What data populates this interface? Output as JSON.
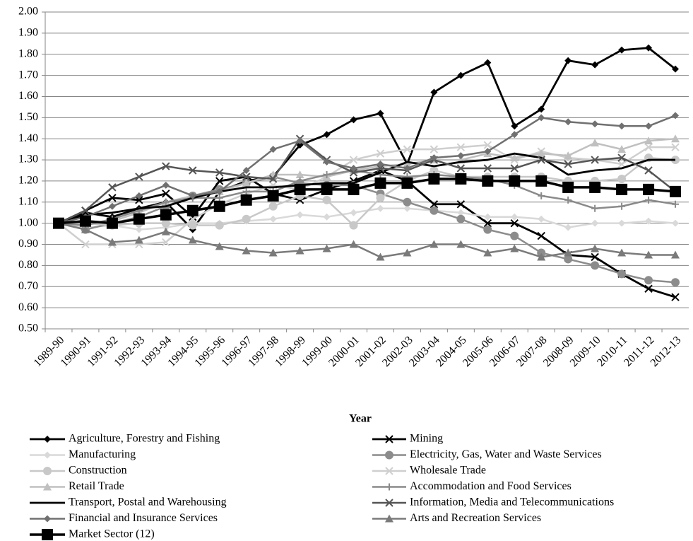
{
  "chart_data": {
    "type": "line",
    "x_label": "Year",
    "categories": [
      "1989-90",
      "1990-91",
      "1991-92",
      "1992-93",
      "1993-94",
      "1994-95",
      "1995-96",
      "1996-97",
      "1997-98",
      "1998-99",
      "1999-00",
      "2000-01",
      "2001-02",
      "2002-03",
      "2003-04",
      "2004-05",
      "2005-06",
      "2006-07",
      "2007-08",
      "2008-09",
      "2009-10",
      "2010-11",
      "2011-12",
      "2012-13"
    ],
    "ylim": [
      0.5,
      2.0
    ],
    "yticks": [
      {
        "value": 0.5,
        "label": "0.50"
      },
      {
        "value": 0.6,
        "label": "0.60"
      },
      {
        "value": 0.7,
        "label": "0.70"
      },
      {
        "value": 0.8,
        "label": "0.80"
      },
      {
        "value": 0.9,
        "label": "0.90"
      },
      {
        "value": 1.0,
        "label": "1.00"
      },
      {
        "value": 1.1,
        "label": "1.10"
      },
      {
        "value": 1.2,
        "label": "1.20"
      },
      {
        "value": 1.3,
        "label": "1.30"
      },
      {
        "value": 1.4,
        "label": "1.40"
      },
      {
        "value": 1.5,
        "label": "1.50"
      },
      {
        "value": 1.6,
        "label": "1.60"
      },
      {
        "value": 1.7,
        "label": "1.70"
      },
      {
        "value": 1.8,
        "label": "1.80"
      },
      {
        "value": 1.9,
        "label": "1.90"
      },
      {
        "value": 2.0,
        "label": "2.00"
      }
    ],
    "grid": true,
    "legend": "bottom",
    "series": [
      {
        "name": "Agriculture, Forestry and Fishing",
        "color": "#000000",
        "marker": "diamond",
        "values": [
          1.0,
          1.05,
          1.03,
          1.07,
          1.1,
          0.97,
          1.15,
          1.2,
          1.22,
          1.37,
          1.42,
          1.49,
          1.52,
          1.28,
          1.62,
          1.7,
          1.76,
          1.46,
          1.54,
          1.77,
          1.75,
          1.82,
          1.83,
          1.73
        ]
      },
      {
        "name": "Mining",
        "color": "#000000",
        "marker": "x",
        "values": [
          1.0,
          1.06,
          1.12,
          1.11,
          1.14,
          1.03,
          1.2,
          1.22,
          1.14,
          1.11,
          1.16,
          1.2,
          1.25,
          1.2,
          1.09,
          1.09,
          1.0,
          1.0,
          0.94,
          0.85,
          0.84,
          0.76,
          0.69,
          0.65
        ]
      },
      {
        "name": "Manufacturing",
        "color": "#d9d9d9",
        "marker": "diamond",
        "values": [
          1.0,
          0.98,
          0.99,
          0.97,
          0.98,
          1.0,
          1.0,
          1.01,
          1.02,
          1.04,
          1.03,
          1.05,
          1.07,
          1.07,
          1.06,
          1.05,
          1.03,
          1.03,
          1.02,
          0.98,
          1.0,
          1.0,
          1.01,
          1.0
        ]
      },
      {
        "name": "Electricity, Gas, Water and Waste Services",
        "color": "#8c8c8c",
        "marker": "circle",
        "values": [
          1.0,
          0.97,
          1.0,
          1.03,
          1.08,
          1.13,
          1.16,
          1.19,
          1.22,
          1.19,
          1.18,
          1.18,
          1.14,
          1.1,
          1.06,
          1.02,
          0.97,
          0.94,
          0.86,
          0.83,
          0.8,
          0.76,
          0.73,
          0.72
        ]
      },
      {
        "name": "Construction",
        "color": "#c8c8c8",
        "marker": "circle",
        "values": [
          1.0,
          1.0,
          0.99,
          1.0,
          1.0,
          0.99,
          0.99,
          1.02,
          1.08,
          1.13,
          1.11,
          0.99,
          1.12,
          1.2,
          1.25,
          1.22,
          1.22,
          1.22,
          1.22,
          1.2,
          1.2,
          1.21,
          1.31,
          1.3
        ]
      },
      {
        "name": "Wholesale Trade",
        "color": "#cfcfcf",
        "marker": "x",
        "values": [
          1.0,
          0.9,
          0.9,
          0.9,
          0.91,
          1.02,
          1.09,
          1.14,
          1.18,
          1.16,
          1.22,
          1.3,
          1.33,
          1.35,
          1.35,
          1.36,
          1.37,
          1.3,
          1.34,
          1.31,
          1.3,
          1.28,
          1.36,
          1.36
        ]
      },
      {
        "name": "Retail Trade",
        "color": "#c0c0c0",
        "marker": "triangle",
        "values": [
          1.0,
          1.0,
          1.01,
          1.05,
          1.1,
          1.13,
          1.15,
          1.19,
          1.23,
          1.23,
          1.22,
          1.25,
          1.27,
          1.28,
          1.3,
          1.3,
          1.33,
          1.31,
          1.33,
          1.32,
          1.38,
          1.35,
          1.39,
          1.4
        ]
      },
      {
        "name": "Accommodation and Food Services",
        "color": "#8a8a8a",
        "marker": "plus",
        "values": [
          1.0,
          0.99,
          1.02,
          1.06,
          1.1,
          1.12,
          1.12,
          1.15,
          1.15,
          1.2,
          1.23,
          1.25,
          1.23,
          1.22,
          1.23,
          1.22,
          1.21,
          1.18,
          1.13,
          1.11,
          1.07,
          1.08,
          1.11,
          1.09
        ]
      },
      {
        "name": "Transport, Postal and Warehousing",
        "color": "#000000",
        "marker": "none",
        "values": [
          1.0,
          1.04,
          1.05,
          1.07,
          1.08,
          1.12,
          1.15,
          1.17,
          1.17,
          1.18,
          1.19,
          1.19,
          1.24,
          1.29,
          1.27,
          1.29,
          1.3,
          1.33,
          1.31,
          1.23,
          1.25,
          1.26,
          1.3,
          1.3
        ]
      },
      {
        "name": "Information, Media and Telecommunications",
        "color": "#555555",
        "marker": "x",
        "values": [
          1.0,
          1.06,
          1.17,
          1.22,
          1.27,
          1.25,
          1.24,
          1.22,
          1.21,
          1.4,
          1.3,
          1.24,
          1.26,
          1.25,
          1.3,
          1.26,
          1.26,
          1.26,
          1.3,
          1.28,
          1.3,
          1.31,
          1.25,
          1.15
        ]
      },
      {
        "name": "Financial and Insurance Services",
        "color": "#707070",
        "marker": "diamond",
        "values": [
          1.0,
          1.03,
          1.08,
          1.13,
          1.18,
          1.13,
          1.15,
          1.25,
          1.35,
          1.39,
          1.29,
          1.26,
          1.28,
          1.26,
          1.31,
          1.32,
          1.34,
          1.42,
          1.5,
          1.48,
          1.47,
          1.46,
          1.46,
          1.51
        ]
      },
      {
        "name": "Arts and Recreation Services",
        "color": "#7a7a7a",
        "marker": "triangle",
        "values": [
          1.0,
          0.97,
          0.91,
          0.92,
          0.96,
          0.92,
          0.89,
          0.87,
          0.86,
          0.87,
          0.88,
          0.9,
          0.84,
          0.86,
          0.9,
          0.9,
          0.86,
          0.88,
          0.84,
          0.86,
          0.88,
          0.86,
          0.85,
          0.85
        ]
      },
      {
        "name": "Market Sector (12)",
        "color": "#000000",
        "marker": "square",
        "values": [
          1.0,
          1.01,
          1.0,
          1.02,
          1.04,
          1.06,
          1.08,
          1.11,
          1.13,
          1.16,
          1.16,
          1.16,
          1.19,
          1.19,
          1.21,
          1.21,
          1.2,
          1.2,
          1.2,
          1.17,
          1.17,
          1.16,
          1.16,
          1.15
        ]
      }
    ]
  }
}
